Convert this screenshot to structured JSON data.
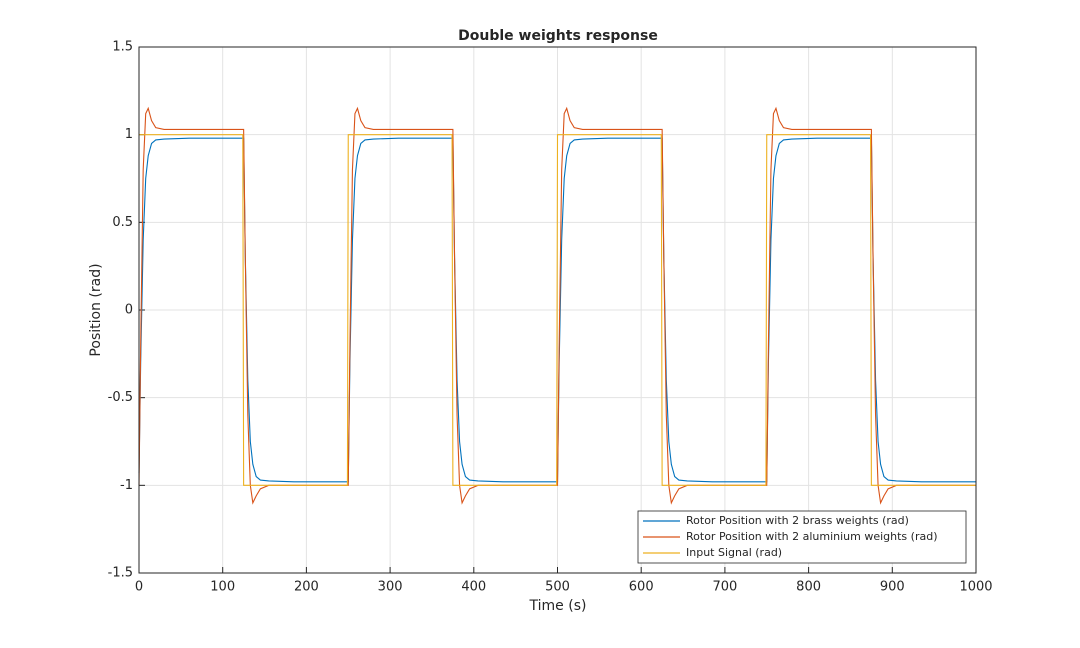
{
  "chart_data": {
    "type": "line",
    "title": "Double weights response",
    "xlabel": "Time (s)",
    "ylabel": "Position (rad)",
    "x": [
      0,
      2,
      5,
      8,
      11,
      15,
      20,
      30,
      60,
      124,
      125,
      127,
      130,
      133,
      136,
      140,
      145,
      155,
      185,
      249,
      250,
      252,
      255,
      258,
      261,
      265,
      270,
      280,
      310,
      374,
      375,
      377,
      380,
      383,
      386,
      390,
      395,
      405,
      435,
      499,
      500,
      502,
      505,
      508,
      511,
      515,
      520,
      530,
      560,
      624,
      625,
      627,
      630,
      633,
      636,
      640,
      645,
      655,
      685,
      749,
      750,
      752,
      755,
      758,
      761,
      765,
      770,
      780,
      810,
      874,
      875,
      877,
      880,
      883,
      886,
      890,
      895,
      905,
      935,
      999,
      1000
    ],
    "series": [
      {
        "name": "Rotor Position with 2 brass weights (rad)",
        "color": "#0072BD",
        "values": [
          -0.93,
          -0.3,
          0.4,
          0.75,
          0.88,
          0.95,
          0.97,
          0.975,
          0.98,
          0.98,
          0.98,
          0.3,
          -0.4,
          -0.75,
          -0.88,
          -0.95,
          -0.97,
          -0.975,
          -0.98,
          -0.98,
          -0.98,
          -0.3,
          0.4,
          0.75,
          0.88,
          0.95,
          0.97,
          0.975,
          0.98,
          0.98,
          0.98,
          0.3,
          -0.4,
          -0.75,
          -0.88,
          -0.95,
          -0.97,
          -0.975,
          -0.98,
          -0.98,
          -0.98,
          -0.3,
          0.4,
          0.75,
          0.88,
          0.95,
          0.97,
          0.975,
          0.98,
          0.98,
          0.98,
          0.3,
          -0.4,
          -0.75,
          -0.88,
          -0.95,
          -0.97,
          -0.975,
          -0.98,
          -0.98,
          -0.98,
          -0.3,
          0.4,
          0.75,
          0.88,
          0.95,
          0.97,
          0.975,
          0.98,
          0.98,
          0.98,
          0.3,
          -0.4,
          -0.75,
          -0.88,
          -0.95,
          -0.97,
          -0.975,
          -0.98,
          -0.98,
          -0.98
        ]
      },
      {
        "name": "Rotor Position with 2 aluminium weights (rad)",
        "color": "#D95319",
        "values": [
          -1,
          -0.2,
          0.8,
          1.12,
          1.15,
          1.08,
          1.04,
          1.03,
          1.03,
          1.03,
          1.03,
          0.3,
          -0.6,
          -1,
          -1.1,
          -1.06,
          -1.02,
          -1,
          -1,
          -1,
          -1,
          -0.2,
          0.8,
          1.12,
          1.15,
          1.08,
          1.04,
          1.03,
          1.03,
          1.03,
          1.03,
          0.3,
          -0.6,
          -1,
          -1.1,
          -1.06,
          -1.02,
          -1,
          -1,
          -1,
          -1,
          -0.2,
          0.8,
          1.12,
          1.15,
          1.08,
          1.04,
          1.03,
          1.03,
          1.03,
          1.03,
          0.3,
          -0.6,
          -1,
          -1.1,
          -1.06,
          -1.02,
          -1,
          -1,
          -1,
          -1,
          -0.2,
          0.8,
          1.12,
          1.15,
          1.08,
          1.04,
          1.03,
          1.03,
          1.03,
          1.03,
          0.3,
          -0.6,
          -1,
          -1.1,
          -1.06,
          -1.02,
          -1,
          -1,
          -1,
          -1
        ]
      },
      {
        "name": "Input Signal (rad)",
        "color": "#EDB120",
        "values": [
          1,
          1,
          1,
          1,
          1,
          1,
          1,
          1,
          1,
          1,
          -1,
          -1,
          -1,
          -1,
          -1,
          -1,
          -1,
          -1,
          -1,
          -1,
          1,
          1,
          1,
          1,
          1,
          1,
          1,
          1,
          1,
          1,
          -1,
          -1,
          -1,
          -1,
          -1,
          -1,
          -1,
          -1,
          -1,
          -1,
          1,
          1,
          1,
          1,
          1,
          1,
          1,
          1,
          1,
          1,
          -1,
          -1,
          -1,
          -1,
          -1,
          -1,
          -1,
          -1,
          -1,
          -1,
          1,
          1,
          1,
          1,
          1,
          1,
          1,
          1,
          1,
          1,
          -1,
          -1,
          -1,
          -1,
          -1,
          -1,
          -1,
          -1,
          -1,
          -1,
          -1
        ]
      }
    ],
    "xlim": [
      0,
      1000
    ],
    "xticks": [
      0,
      100,
      200,
      300,
      400,
      500,
      600,
      700,
      800,
      900,
      1000
    ],
    "ylim": [
      -1.5,
      1.5
    ],
    "yticks": [
      -1.5,
      -1,
      -0.5,
      0,
      0.5,
      1,
      1.5
    ],
    "grid": true,
    "legend": "southeast"
  }
}
